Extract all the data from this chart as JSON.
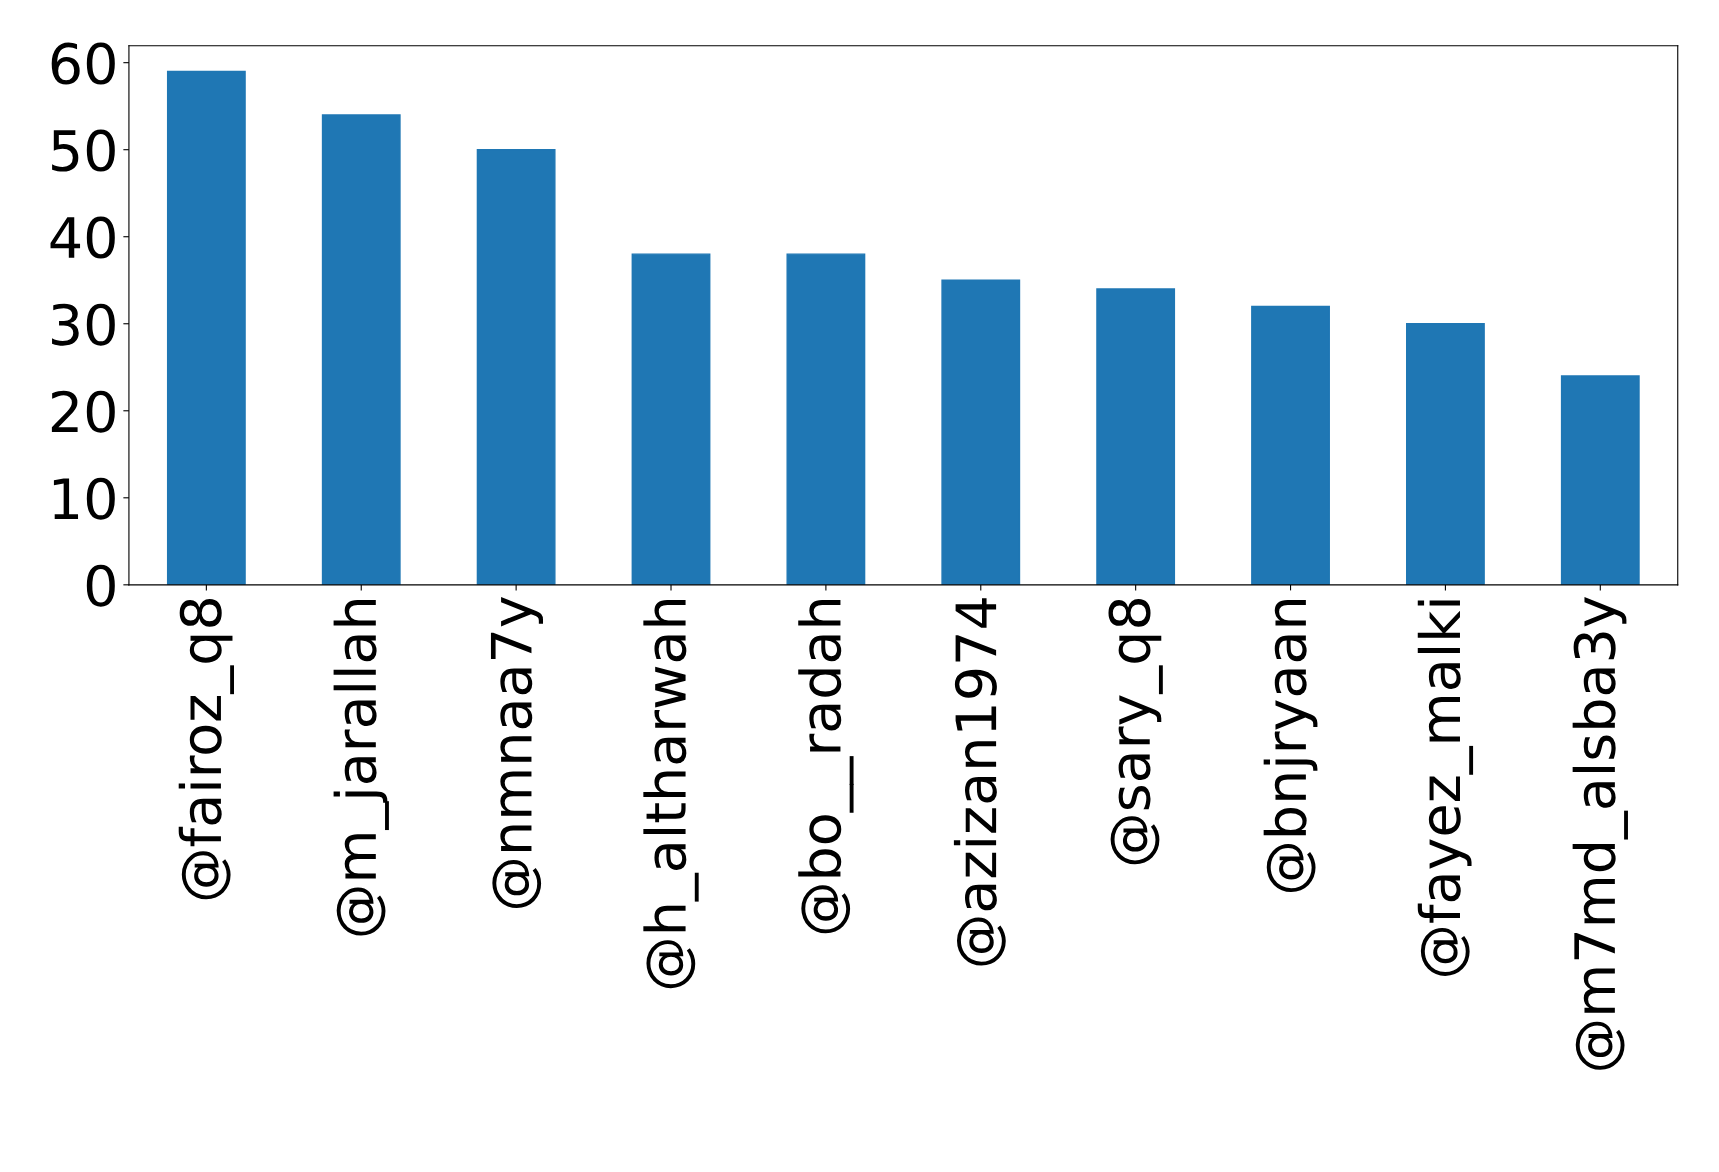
{
  "chart_data": {
    "type": "bar",
    "categories": [
      "@fairoz_q8",
      "@m_jarallah",
      "@nmnaa7y",
      "@h_altharwah",
      "@bo__radah",
      "@azizan1974",
      "@sary_q8",
      "@bnjryaan",
      "@fayez_malki",
      "@m7md_alsba3y"
    ],
    "values": [
      59,
      54,
      50,
      38,
      38,
      35,
      34,
      32,
      30,
      24
    ],
    "color": "#1f77b4",
    "ylim": [
      0,
      61.95
    ],
    "yticks": [
      0,
      10,
      20,
      30,
      40,
      50,
      60
    ],
    "grid": false
  }
}
